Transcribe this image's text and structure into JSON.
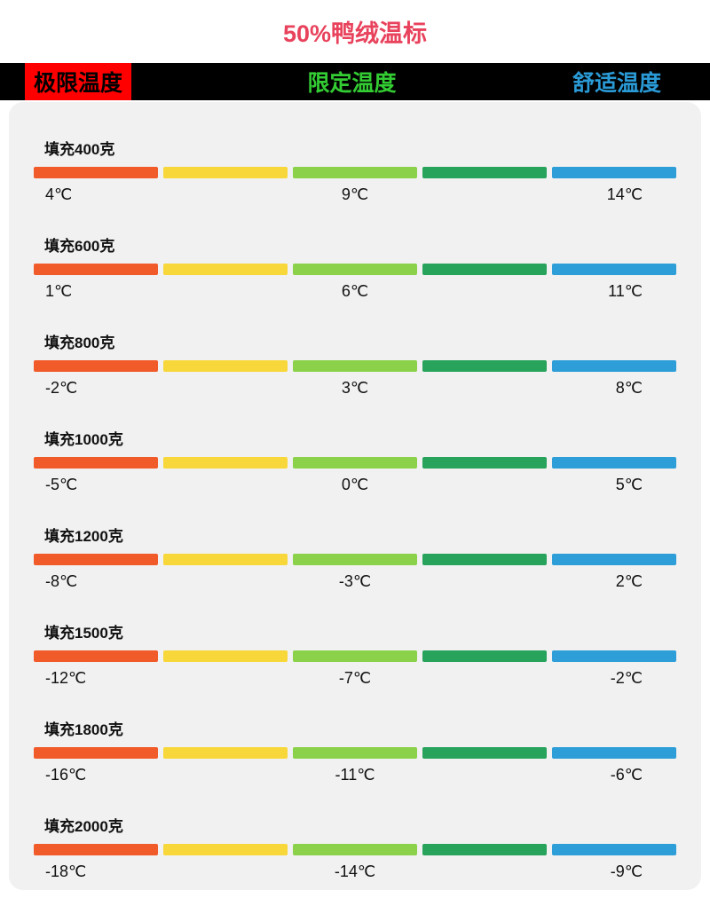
{
  "title": "50%鸭绒温标",
  "legend": {
    "extreme": "极限温度",
    "limit": "限定温度",
    "comfort": "舒适温度"
  },
  "colors": {
    "title": "#e8425c",
    "header_bg": "#000000",
    "extreme_bg": "#ff0000",
    "extreme_text": "#000000",
    "limit_text": "#33cc33",
    "comfort_text": "#2a9ad6",
    "card_bg": "#f1f1f1",
    "segments": [
      "#f15a29",
      "#f8d73a",
      "#8bd24a",
      "#27a35c",
      "#2d9ed8"
    ]
  },
  "chart_data": {
    "type": "table",
    "title": "50%鸭绒温标",
    "columns": [
      "极限温度",
      "限定温度",
      "舒适温度"
    ],
    "rows": [
      {
        "fill": "填充400克",
        "extreme": "4℃",
        "limit": "9℃",
        "comfort": "14℃"
      },
      {
        "fill": "填充600克",
        "extreme": "1℃",
        "limit": "6℃",
        "comfort": "11℃"
      },
      {
        "fill": "填充800克",
        "extreme": "-2℃",
        "limit": "3℃",
        "comfort": "8℃"
      },
      {
        "fill": "填充1000克",
        "extreme": "-5℃",
        "limit": "0℃",
        "comfort": "5℃"
      },
      {
        "fill": "填充1200克",
        "extreme": "-8℃",
        "limit": "-3℃",
        "comfort": "2℃"
      },
      {
        "fill": "填充1500克",
        "extreme": "-12℃",
        "limit": "-7℃",
        "comfort": "-2℃"
      },
      {
        "fill": "填充1800克",
        "extreme": "-16℃",
        "limit": "-11℃",
        "comfort": "-6℃"
      },
      {
        "fill": "填充2000克",
        "extreme": "-18℃",
        "limit": "-14℃",
        "comfort": "-9℃"
      }
    ]
  }
}
